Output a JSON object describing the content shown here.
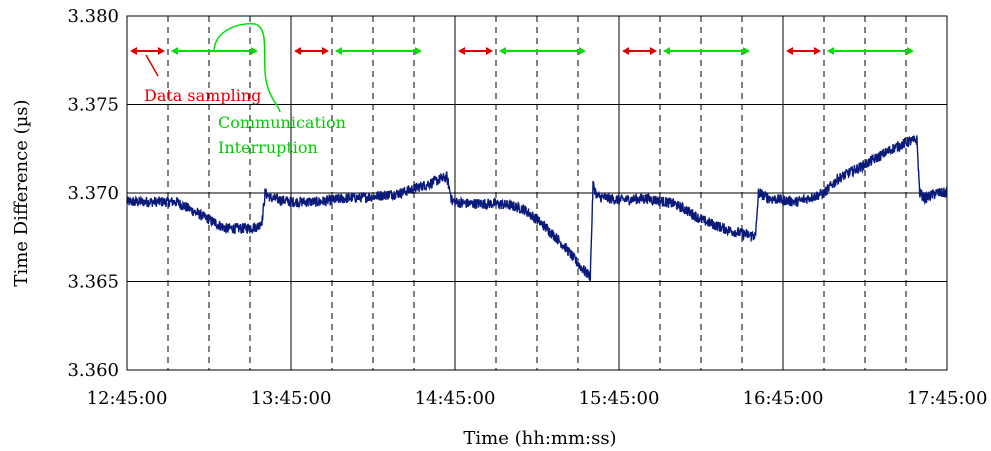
{
  "chart_data": {
    "type": "line",
    "title": "",
    "xlabel": "Time (hh:mm:ss)",
    "ylabel": "Time Difference (µs)",
    "ylim": [
      3.36,
      3.38
    ],
    "xlim_minutes": [
      0,
      300
    ],
    "x_tick_labels": [
      "12:45:00",
      "13:45:00",
      "14:45:00",
      "15:45:00",
      "16:45:00",
      "17:45:00"
    ],
    "x_tick_minutes": [
      0,
      60,
      120,
      180,
      240,
      300
    ],
    "y_ticks": [
      3.36,
      3.365,
      3.37,
      3.375,
      3.38
    ],
    "y_tick_labels": [
      "3.360",
      "3.365",
      "3.370",
      "3.375",
      "3.380"
    ],
    "grid": true,
    "minor_dashed_minutes": [
      15,
      30,
      45,
      75,
      90,
      105,
      135,
      150,
      165,
      195,
      210,
      225,
      255,
      270,
      285
    ],
    "colors": {
      "series": "#0a1a7a",
      "sampling": "#e00000",
      "interruption": "#00dd00",
      "grid": "#000000"
    },
    "series": [
      {
        "name": "",
        "points": [
          [
            0,
            3.3695
          ],
          [
            6,
            3.3695
          ],
          [
            12,
            3.3695
          ],
          [
            18,
            3.3695
          ],
          [
            24,
            3.369
          ],
          [
            30,
            3.3685
          ],
          [
            36,
            3.368
          ],
          [
            42,
            3.368
          ],
          [
            48,
            3.3681
          ],
          [
            49.5,
            3.3685
          ],
          [
            50.5,
            3.37
          ],
          [
            53,
            3.3697
          ],
          [
            60,
            3.3695
          ],
          [
            70,
            3.3695
          ],
          [
            80,
            3.3697
          ],
          [
            90,
            3.3698
          ],
          [
            100,
            3.37
          ],
          [
            110,
            3.3705
          ],
          [
            115,
            3.3708
          ],
          [
            117,
            3.3709
          ],
          [
            119,
            3.3695
          ],
          [
            125,
            3.3694
          ],
          [
            135,
            3.3694
          ],
          [
            140,
            3.3693
          ],
          [
            145,
            3.3691
          ],
          [
            150,
            3.3685
          ],
          [
            155,
            3.3678
          ],
          [
            160,
            3.367
          ],
          [
            165,
            3.366
          ],
          [
            168,
            3.3655
          ],
          [
            169.5,
            3.3653
          ],
          [
            170.5,
            3.3705
          ],
          [
            172,
            3.3698
          ],
          [
            180,
            3.3696
          ],
          [
            190,
            3.3697
          ],
          [
            200,
            3.3694
          ],
          [
            205,
            3.369
          ],
          [
            210,
            3.3685
          ],
          [
            220,
            3.3679
          ],
          [
            228,
            3.3676
          ],
          [
            230,
            3.3676
          ],
          [
            231,
            3.37
          ],
          [
            235,
            3.3697
          ],
          [
            245,
            3.3695
          ],
          [
            255,
            3.37
          ],
          [
            260,
            3.3708
          ],
          [
            270,
            3.3716
          ],
          [
            280,
            3.3725
          ],
          [
            286,
            3.3729
          ],
          [
            289,
            3.373
          ],
          [
            290,
            3.37
          ],
          [
            292,
            3.3697
          ],
          [
            296,
            3.37
          ],
          [
            300,
            3.37
          ]
        ]
      }
    ],
    "sampling_arrows": [
      [
        0,
        15
      ],
      [
        60,
        75
      ],
      [
        120,
        135
      ],
      [
        180,
        195
      ],
      [
        240,
        255
      ]
    ],
    "interruption_arrows": [
      [
        15,
        49
      ],
      [
        75,
        109
      ],
      [
        135,
        169
      ],
      [
        195,
        229
      ],
      [
        255,
        289
      ]
    ],
    "annotations": {
      "sampling_label": "Data sampling",
      "interruption_label_1": "Communication",
      "interruption_label_2": "Interruption"
    }
  }
}
